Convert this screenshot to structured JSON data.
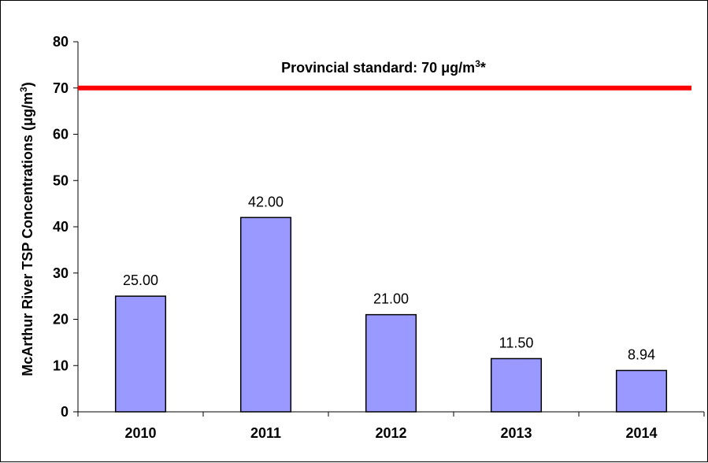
{
  "chart_data": {
    "type": "bar",
    "categories": [
      "2010",
      "2011",
      "2012",
      "2013",
      "2014"
    ],
    "values": [
      25.0,
      42.0,
      21.0,
      11.5,
      8.94
    ],
    "data_labels": [
      "25.00",
      "42.00",
      "21.00",
      "11.50",
      "8.94"
    ],
    "title": "",
    "xlabel": "",
    "ylabel": {
      "text": "McArthur River TSP Concentrations (μg/m",
      "superscript": "3",
      "suffix": ")"
    },
    "ylim": [
      0,
      80
    ],
    "yticks": [
      0,
      10,
      20,
      30,
      40,
      50,
      60,
      70,
      80
    ],
    "grid": false,
    "legend": "none",
    "reference_line": {
      "value": 70,
      "label": "Provincial standard: 70 μg/m",
      "label_superscript": "3",
      "label_suffix": "*",
      "color": "#ff0000"
    },
    "bar_color": "#9999ff",
    "bar_edge_color": "#000000"
  }
}
